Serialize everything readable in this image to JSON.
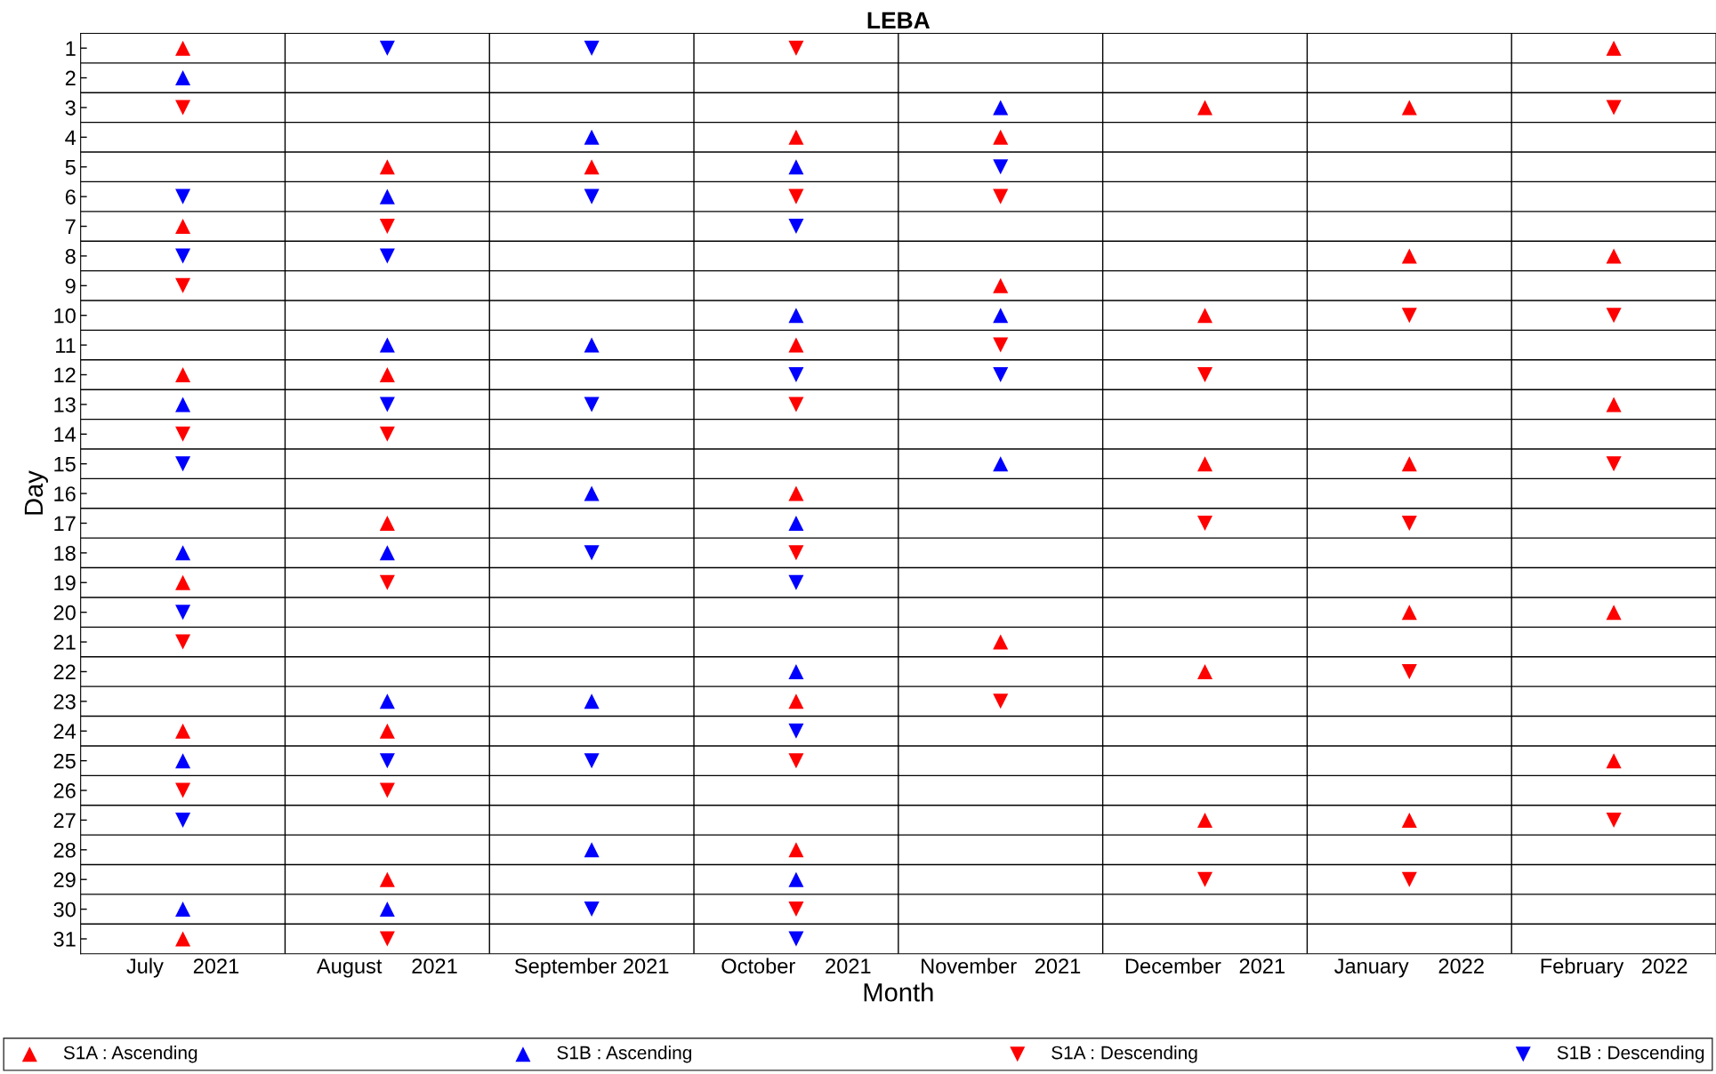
{
  "chart_data": {
    "type": "scatter",
    "title": "LEBA",
    "xlabel": "Month",
    "ylabel": "Day",
    "categories": [
      "July     2021",
      "August     2021",
      "September 2021",
      "October     2021",
      "November   2021",
      "December   2021",
      "January     2022",
      "February   2022"
    ],
    "ylim": [
      31.5,
      0.5
    ],
    "yticks": [
      1,
      2,
      3,
      4,
      5,
      6,
      7,
      8,
      9,
      10,
      11,
      12,
      13,
      14,
      15,
      16,
      17,
      18,
      19,
      20,
      21,
      22,
      23,
      24,
      25,
      26,
      27,
      28,
      29,
      30,
      31
    ],
    "grid": true,
    "legend": "bottom",
    "series": [
      {
        "name": "S1A : Ascending",
        "color": "#ff0000",
        "marker": "triangle",
        "x": [
          "July     2021",
          "July     2021",
          "July     2021",
          "July     2021",
          "July     2021",
          "July     2021",
          "August     2021",
          "August     2021",
          "August     2021",
          "August     2021",
          "August     2021",
          "September 2021",
          "October     2021",
          "October     2021",
          "October     2021",
          "October     2021",
          "October     2021",
          "November   2021",
          "November   2021",
          "November   2021",
          "December   2021",
          "December   2021",
          "December   2021",
          "December   2021",
          "December   2021",
          "January     2022",
          "January     2022",
          "January     2022",
          "January     2022",
          "January     2022",
          "February   2022",
          "February   2022",
          "February   2022",
          "February   2022",
          "February   2022"
        ],
        "values": [
          1,
          7,
          12,
          19,
          24,
          31,
          5,
          12,
          17,
          24,
          29,
          5,
          4,
          11,
          16,
          23,
          28,
          4,
          9,
          21,
          3,
          10,
          15,
          22,
          27,
          3,
          8,
          15,
          20,
          27,
          1,
          8,
          13,
          20,
          25
        ]
      },
      {
        "name": "S1B : Ascending",
        "color": "#0000ff",
        "marker": "triangle",
        "x": [
          "July     2021",
          "July     2021",
          "July     2021",
          "July     2021",
          "July     2021",
          "August     2021",
          "August     2021",
          "August     2021",
          "August     2021",
          "August     2021",
          "September 2021",
          "September 2021",
          "September 2021",
          "September 2021",
          "September 2021",
          "October     2021",
          "October     2021",
          "October     2021",
          "October     2021",
          "October     2021",
          "November   2021",
          "November   2021",
          "November   2021"
        ],
        "values": [
          2,
          13,
          18,
          25,
          30,
          6,
          11,
          18,
          23,
          30,
          4,
          11,
          16,
          23,
          28,
          5,
          10,
          17,
          22,
          29,
          3,
          10,
          15
        ]
      },
      {
        "name": "S1A : Descending",
        "color": "#ff0000",
        "marker": "triangle_down",
        "x": [
          "July     2021",
          "July     2021",
          "July     2021",
          "July     2021",
          "July     2021",
          "August     2021",
          "August     2021",
          "August     2021",
          "August     2021",
          "August     2021",
          "October     2021",
          "October     2021",
          "October     2021",
          "October     2021",
          "October     2021",
          "October     2021",
          "November   2021",
          "November   2021",
          "November   2021",
          "December   2021",
          "December   2021",
          "December   2021",
          "January     2022",
          "January     2022",
          "January     2022",
          "January     2022",
          "February   2022",
          "February   2022",
          "February   2022",
          "February   2022"
        ],
        "values": [
          3,
          9,
          14,
          21,
          26,
          7,
          14,
          19,
          26,
          31,
          1,
          6,
          13,
          18,
          25,
          30,
          6,
          11,
          23,
          12,
          17,
          29,
          10,
          17,
          22,
          29,
          3,
          10,
          15,
          27
        ]
      },
      {
        "name": "S1B : Descending",
        "color": "#0000ff",
        "marker": "triangle_down",
        "x": [
          "July     2021",
          "July     2021",
          "July     2021",
          "July     2021",
          "July     2021",
          "August     2021",
          "August     2021",
          "August     2021",
          "August     2021",
          "September 2021",
          "September 2021",
          "September 2021",
          "September 2021",
          "September 2021",
          "September 2021",
          "October     2021",
          "October     2021",
          "October     2021",
          "October     2021",
          "October     2021",
          "November   2021",
          "November   2021"
        ],
        "values": [
          6,
          8,
          15,
          20,
          27,
          1,
          8,
          13,
          25,
          1,
          6,
          13,
          18,
          25,
          30,
          7,
          12,
          19,
          24,
          31,
          5,
          12
        ]
      }
    ]
  }
}
